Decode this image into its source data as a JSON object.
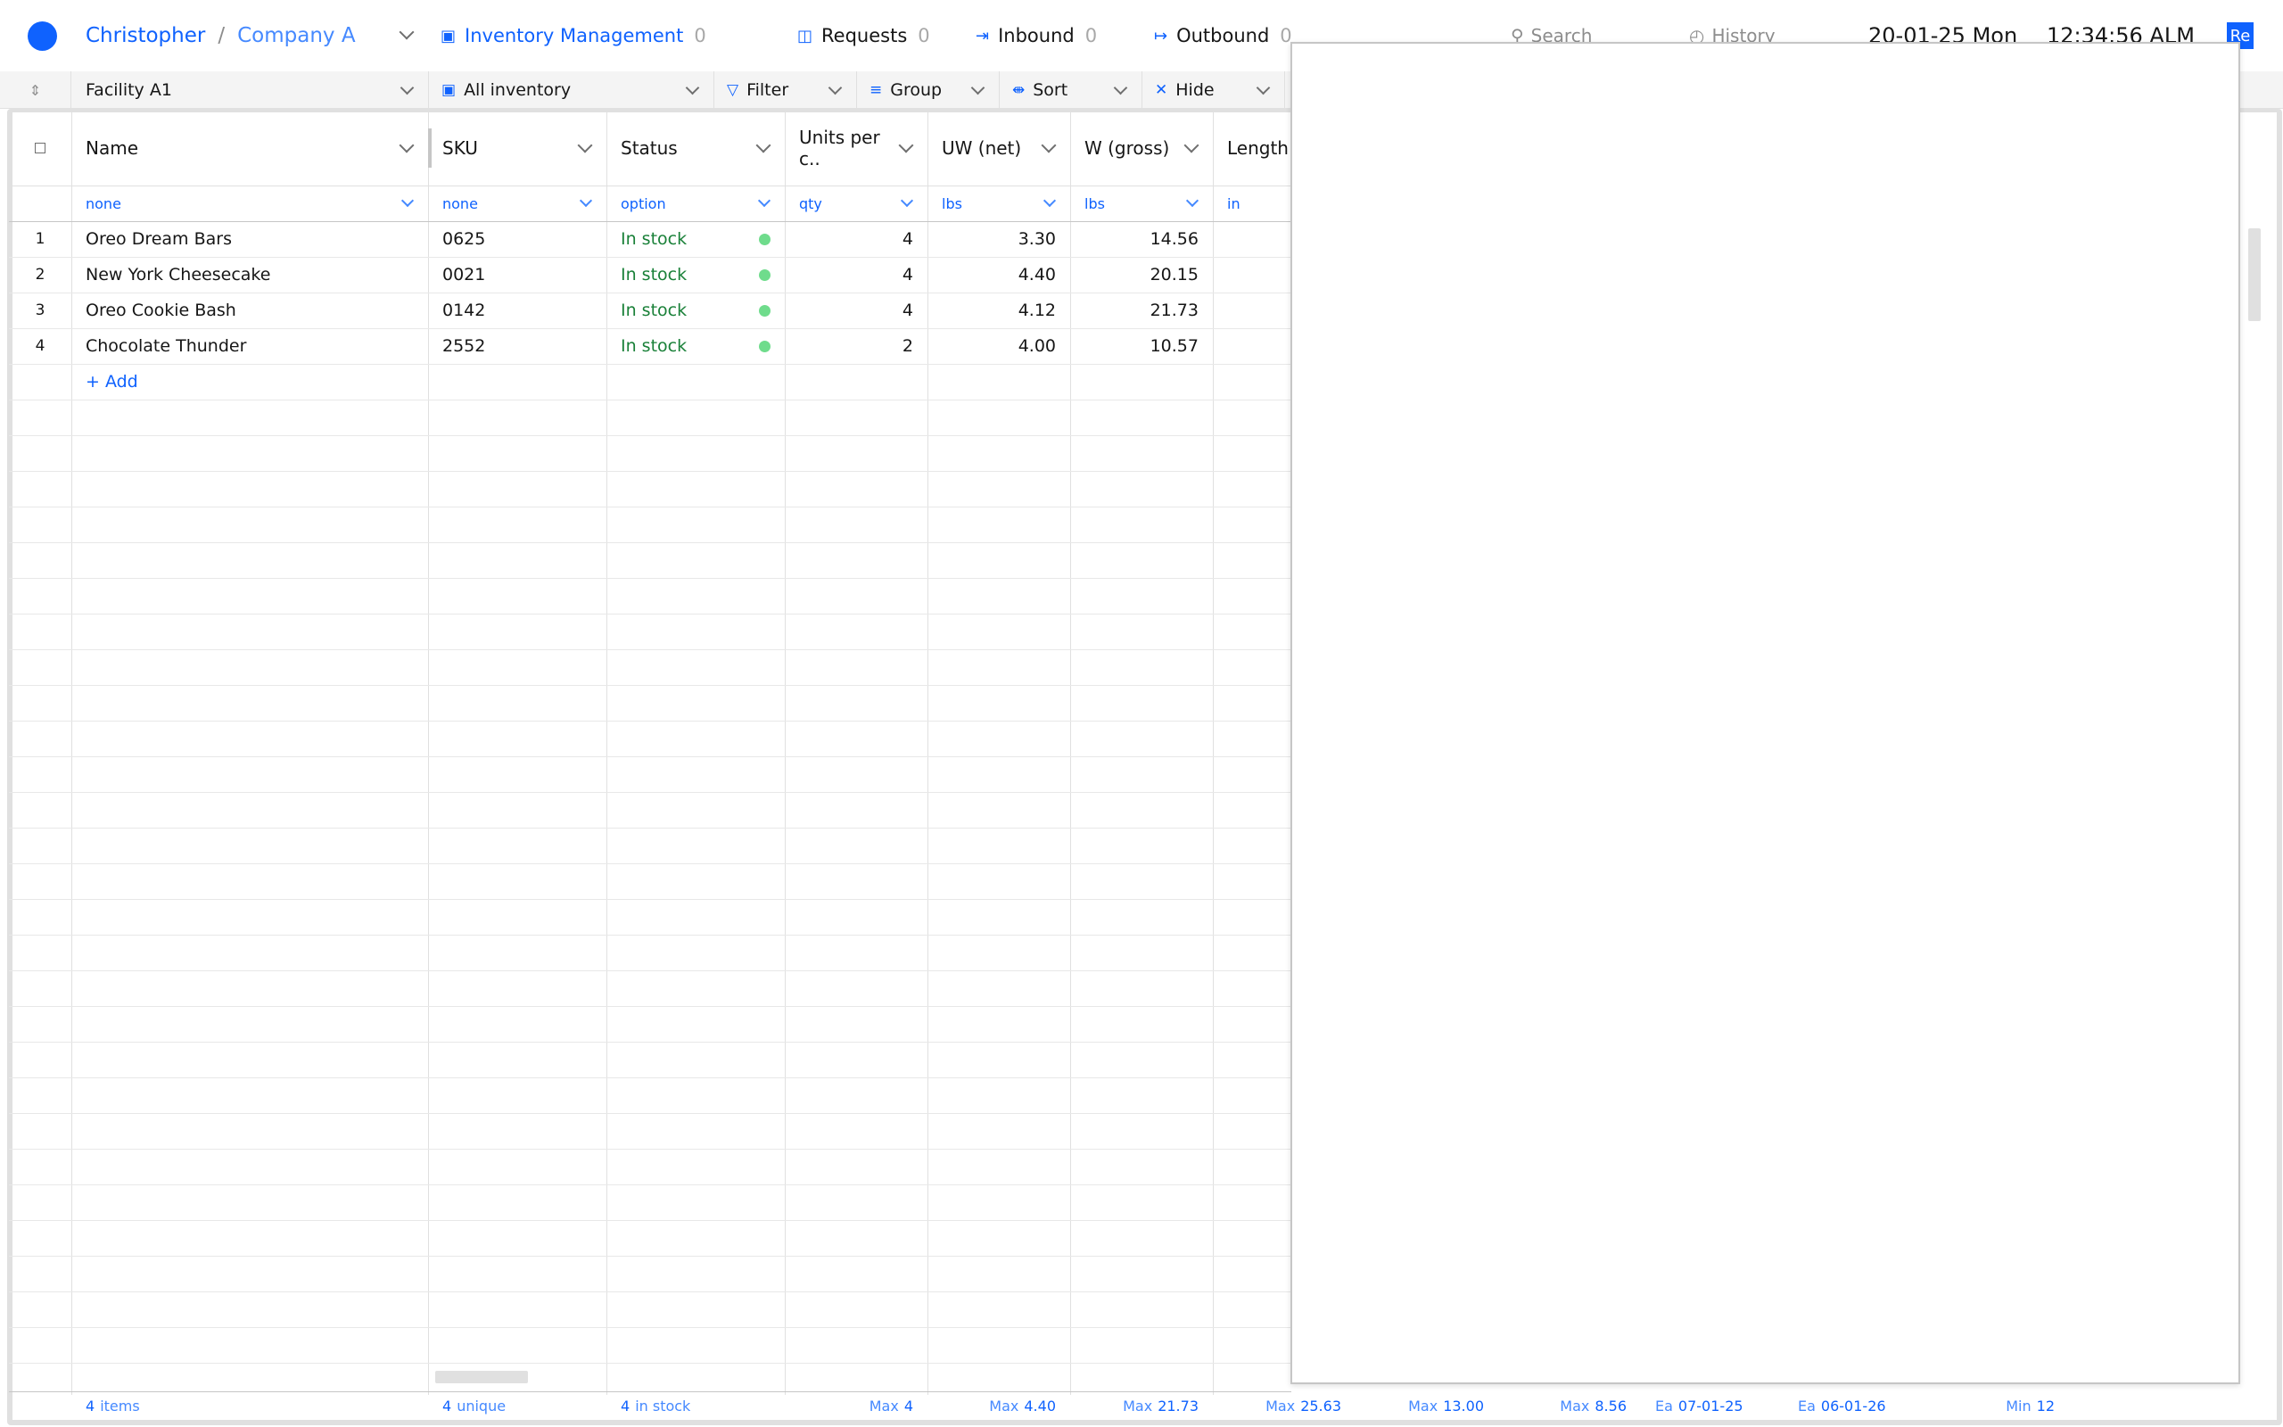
{
  "header": {
    "user": "Christopher",
    "separator": "/",
    "company": "Company A",
    "nav": [
      {
        "label": "Inventory Management",
        "count": "0"
      },
      {
        "label": "Requests",
        "count": "0"
      },
      {
        "label": "Inbound",
        "count": "0"
      },
      {
        "label": "Outbound",
        "count": "0"
      }
    ],
    "search_label": "Search",
    "history_label": "History",
    "date": "20-01-25  Mon",
    "time": "12:34:56  ALM",
    "user_badge": "Re"
  },
  "toolbar": {
    "facility": "Facility A1",
    "view": "All inventory",
    "filter_label": "Filter",
    "group_label": "Group",
    "sort_label": "Sort",
    "hide_label": "Hide"
  },
  "table": {
    "columns": [
      {
        "label": "Name",
        "unit": "none"
      },
      {
        "label": "SKU",
        "unit": "none"
      },
      {
        "label": "Status",
        "unit": "option"
      },
      {
        "label": "Units per c..",
        "unit": "qty"
      },
      {
        "label": "UW (net)",
        "unit": "lbs"
      },
      {
        "label": "W (gross)",
        "unit": "lbs"
      },
      {
        "label": "Length",
        "unit": "in"
      }
    ],
    "rows": [
      {
        "num": "1",
        "name": "Oreo Dream Bars",
        "sku": "0625",
        "status": "In stock",
        "units": "4",
        "uw": "3.30",
        "w": "14.56"
      },
      {
        "num": "2",
        "name": "New York Cheesecake",
        "sku": "0021",
        "status": "In stock",
        "units": "4",
        "uw": "4.40",
        "w": "20.15"
      },
      {
        "num": "3",
        "name": "Oreo Cookie Bash",
        "sku": "0142",
        "status": "In stock",
        "units": "4",
        "uw": "4.12",
        "w": "21.73"
      },
      {
        "num": "4",
        "name": "Chocolate Thunder",
        "sku": "2552",
        "status": "In stock",
        "units": "2",
        "uw": "4.00",
        "w": "10.57"
      }
    ],
    "add_label": "+ Add",
    "footer": {
      "items_count": "4",
      "items_label": "items",
      "unique_count": "4",
      "unique_label": "unique",
      "instock_count": "4",
      "instock_label": "in stock",
      "summaries": [
        {
          "label": "Max",
          "value": "4"
        },
        {
          "label": "Max",
          "value": "4.40"
        },
        {
          "label": "Max",
          "value": "21.73"
        },
        {
          "label": "Max",
          "value": "25.63"
        },
        {
          "label": "Max",
          "value": "13.00"
        },
        {
          "label": "Max",
          "value": "8.56"
        },
        {
          "label": "Ea",
          "value": "07-01-25"
        },
        {
          "label": "Ea",
          "value": "06-01-26"
        },
        {
          "label": "Min",
          "value": "12"
        }
      ]
    }
  },
  "colors": {
    "accent": "#0f62fe",
    "in_stock_text": "#198038",
    "in_stock_dot": "#6fdc8c"
  }
}
